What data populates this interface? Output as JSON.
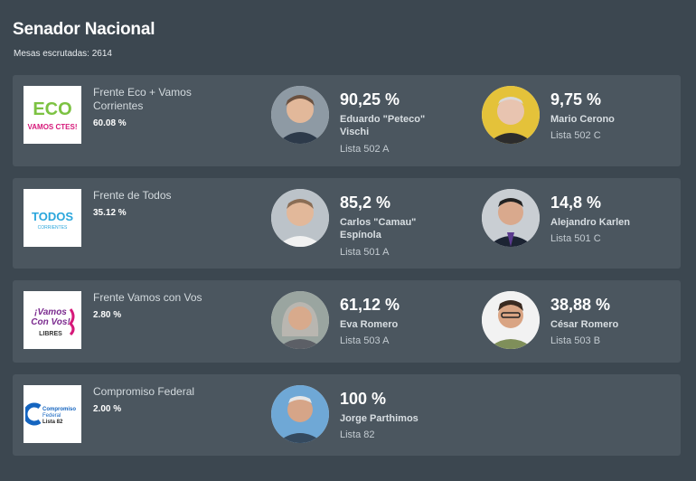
{
  "header": {
    "title": "Senador Nacional",
    "subtitle": "Mesas escrutadas: 2614"
  },
  "parties": [
    {
      "name": "Frente Eco + Vamos Corrientes",
      "percent": "60.08 %",
      "logo_icon": "eco-vamos-logo",
      "logo_text": [
        "ECO",
        "VAMOS CTES!"
      ],
      "candidates": [
        {
          "percent": "90,25 %",
          "name": "Eduardo \"Peteco\" Vischi",
          "list": "Lista 502 A",
          "icon": "candidate-photo"
        },
        {
          "percent": "9,75 %",
          "name": "Mario Cerono",
          "list": "Lista 502 C",
          "icon": "candidate-photo"
        }
      ]
    },
    {
      "name": "Frente de Todos",
      "percent": "35.12 %",
      "logo_icon": "frente-de-todos-logo",
      "logo_text": [
        "TODOS",
        "CORRIENTES"
      ],
      "candidates": [
        {
          "percent": "85,2 %",
          "name": "Carlos \"Camau\" Espínola",
          "list": "Lista 501 A",
          "icon": "candidate-photo"
        },
        {
          "percent": "14,8 %",
          "name": "Alejandro Karlen",
          "list": "Lista 501 C",
          "icon": "candidate-photo"
        }
      ]
    },
    {
      "name": "Frente Vamos con Vos",
      "percent": "2.80 %",
      "logo_icon": "vamos-con-vos-logo",
      "logo_text": [
        "¡Vamos",
        "Con Vos!",
        "LIBRES"
      ],
      "candidates": [
        {
          "percent": "61,12 %",
          "name": "Eva Romero",
          "list": "Lista 503 A",
          "icon": "candidate-photo"
        },
        {
          "percent": "38,88 %",
          "name": "César Romero",
          "list": "Lista 503 B",
          "icon": "candidate-photo"
        }
      ]
    },
    {
      "name": "Compromiso Federal",
      "percent": "2.00 %",
      "logo_icon": "compromiso-federal-logo",
      "logo_text": [
        "Compromiso",
        "Federal",
        "Lista 82"
      ],
      "candidates": [
        {
          "percent": "100 %",
          "name": "Jorge Parthimos",
          "list": "Lista 82",
          "icon": "candidate-photo"
        }
      ]
    }
  ],
  "colors": {
    "background": "#3c4750",
    "card": "#4b565f",
    "eco_green": "#7cc242",
    "todos_blue": "#2aa6dc",
    "vamos_purple": "#7b2b8f",
    "federal_blue": "#1565c0"
  }
}
